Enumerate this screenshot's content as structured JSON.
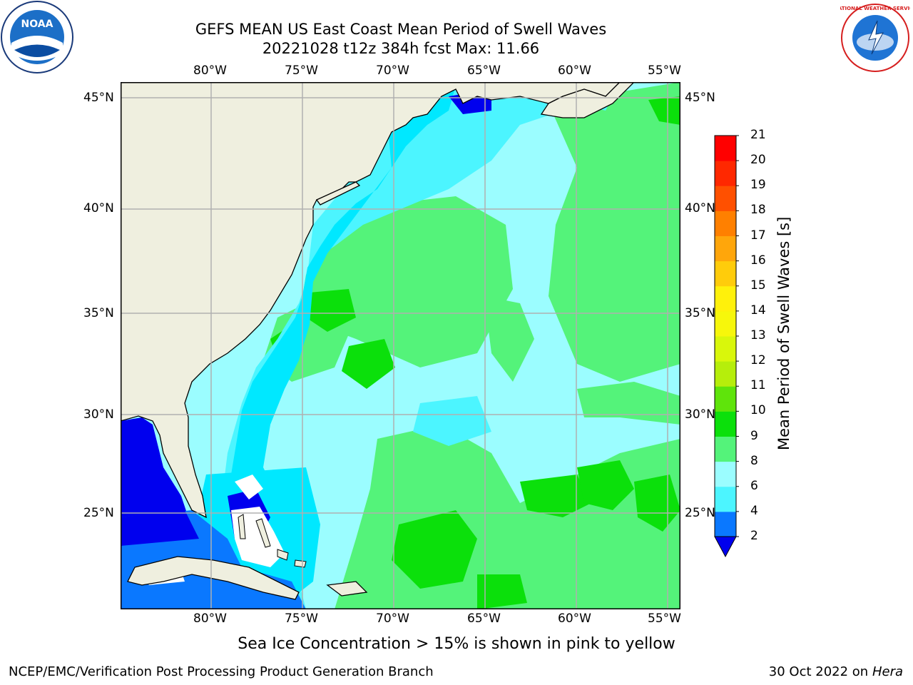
{
  "title_line1": "GEFS MEAN US East Coast Mean Period of Swell Waves",
  "title_line2": "20221028 t12z 384h fcst   Max: 11.66",
  "caption": "Sea Ice Concentration > 15% is shown in pink to yellow",
  "footer_left": "NCEP/EMC/Verification Post Processing Product Generation Branch",
  "footer_right_date": "30 Oct 2022 on ",
  "footer_right_machine": "Hera",
  "logos": {
    "left": "NOAA",
    "right": "NATIONAL WEATHER SERVICE"
  },
  "map": {
    "lon_labels": [
      "80°W",
      "75°W",
      "70°W",
      "65°W",
      "60°W",
      "55°W"
    ],
    "lat_labels": [
      "45°N",
      "40°N",
      "35°N",
      "30°N",
      "25°N"
    ],
    "land_color": "#efefdf",
    "grid_color": "#b0b0b0"
  },
  "colorbar": {
    "label": "Mean Period of Swell Waves [s]",
    "ticks": [
      "2",
      "4",
      "6",
      "8",
      "9",
      "10",
      "11",
      "12",
      "13",
      "14",
      "15",
      "16",
      "17",
      "18",
      "19",
      "20",
      "21"
    ],
    "colors": [
      "#0a78ff",
      "#00e8ff",
      "#4cf5ff",
      "#9bfdff",
      "#54f37a",
      "#0be00b",
      "#5fe40b",
      "#b6ee0b",
      "#d9f70b",
      "#f7f70b",
      "#fff10b",
      "#ffcc0b",
      "#ffa60b",
      "#ff8000",
      "#ff5000",
      "#ff2800",
      "#ff0000"
    ],
    "extend_color": "#0000ee"
  }
}
